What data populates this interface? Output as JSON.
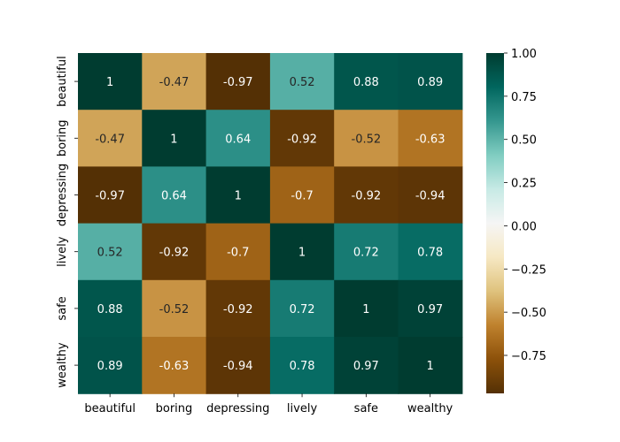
{
  "chart_data": {
    "type": "heatmap",
    "title": "",
    "xlabel": "",
    "ylabel": "",
    "x_labels": [
      "beautiful",
      "boring",
      "depressing",
      "lively",
      "safe",
      "wealthy"
    ],
    "y_labels": [
      "beautiful",
      "boring",
      "depressing",
      "lively",
      "safe",
      "wealthy"
    ],
    "values": [
      [
        1,
        -0.47,
        -0.97,
        0.52,
        0.88,
        0.89
      ],
      [
        -0.47,
        1,
        0.64,
        -0.92,
        -0.52,
        -0.63
      ],
      [
        -0.97,
        0.64,
        1,
        -0.7,
        -0.92,
        -0.94
      ],
      [
        0.52,
        -0.92,
        -0.7,
        1,
        0.72,
        0.78
      ],
      [
        0.88,
        -0.52,
        -0.92,
        0.72,
        1,
        0.97
      ],
      [
        0.89,
        -0.63,
        -0.94,
        0.78,
        0.97,
        1
      ]
    ],
    "annotated": true,
    "colormap": "BrBG",
    "colorbar": {
      "vmin": -0.97,
      "vmax": 1.0,
      "ticks": [
        1.0,
        0.75,
        0.5,
        0.25,
        0.0,
        -0.25,
        -0.5,
        -0.75
      ],
      "tick_labels": [
        "1.00",
        "0.75",
        "0.50",
        "0.25",
        "0.00",
        "−0.25",
        "−0.50",
        "−0.75"
      ]
    }
  }
}
